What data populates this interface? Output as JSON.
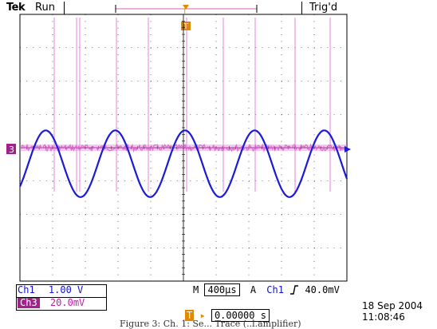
{
  "header": {
    "brand": "Tek",
    "mode": "Run",
    "trigger_status": "Trig'd",
    "trigger_marker": "T"
  },
  "channel_marker": {
    "label": "3",
    "color": "#a0208c"
  },
  "readouts": {
    "ch1_label": "Ch1",
    "ch1_scale": "1.00 V",
    "ch3_label": "Ch3",
    "ch3_scale": "20.0mV",
    "timebase_prefix": "M",
    "timebase": "400µs",
    "trigger_mode": "A",
    "trigger_source": "Ch1",
    "trigger_slope_icon": "rising-edge-icon",
    "trigger_level": "40.0mV",
    "trigger_pos_label": "T",
    "trigger_position": "0.00000 s",
    "date": "18 Sep  2004",
    "time": "11:08:46"
  },
  "colors": {
    "ch1_trace": "#1a1ad8",
    "ch3_trace": "#e060d0",
    "trigger_marker": "#e08a00",
    "graticule": "#000000"
  },
  "traces": {
    "ch1_period_divisions": 2.13,
    "ch1_amplitude_divisions": 1.0,
    "ch1_offset_divisions": -0.55,
    "ch3_offset_divisions": 0
  },
  "caption": "Figure 3: Ch. 1: Se... Trace (..l.amplifier)"
}
